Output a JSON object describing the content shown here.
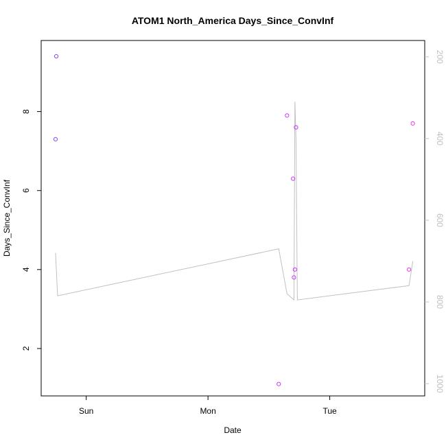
{
  "chart_data": {
    "type": "scatter",
    "title": "ATOM1 North_America Days_Since_ConvInf",
    "xlabel": "Date",
    "ylabel": "Days_Since_ConvInf",
    "x_tick_labels": [
      "Sun",
      "Mon",
      "Tue"
    ],
    "y_ticks": [
      2,
      4,
      6,
      8
    ],
    "right_ticks": [
      200,
      400,
      600,
      800,
      1000
    ],
    "grid": false,
    "points_series": {
      "x": [
        -0.252,
        -0.246,
        1.581,
        1.649,
        1.699,
        1.706,
        1.714,
        1.723,
        2.651,
        2.682
      ],
      "y": [
        7.3,
        9.4,
        1.1,
        7.9,
        6.3,
        3.8,
        4.0,
        7.6,
        4.0,
        7.7
      ],
      "colors": [
        "#8844ff",
        "#8844ff",
        "#cc33ff",
        "#cc33ff",
        "#cc33ff",
        "#cc33ff",
        "#cc33ff",
        "#cc33ff",
        "#ee33ee",
        "#ee33ee"
      ]
    },
    "line_series": {
      "color": "#c0c0c0",
      "x": [
        -0.252,
        -0.235,
        1.581,
        1.649,
        1.706,
        1.714,
        1.723,
        1.734,
        2.651,
        2.682
      ],
      "y": [
        680,
        785,
        670,
        780,
        795,
        310,
        405,
        795,
        760,
        700
      ]
    }
  }
}
